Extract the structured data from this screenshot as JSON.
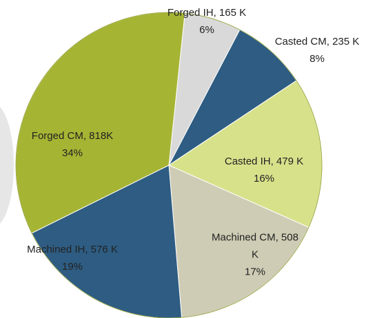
{
  "chart_data": {
    "type": "pie",
    "categories": [
      "Forged IH, 165 K",
      "Casted CM, 235 K",
      "Casted IH, 479 K",
      "Machined CM, 508 K",
      "Machined IH, 576 K",
      "Forged CM, 818K"
    ],
    "values": [
      6,
      8,
      16,
      17,
      19,
      34
    ],
    "value_labels": [
      "6%",
      "8%",
      "16%",
      "17%",
      "19%",
      "34%"
    ],
    "colors": [
      "#d9d9d9",
      "#2e5c82",
      "#d7e18a",
      "#cfccb5",
      "#2e5c82",
      "#a6b434"
    ]
  }
}
